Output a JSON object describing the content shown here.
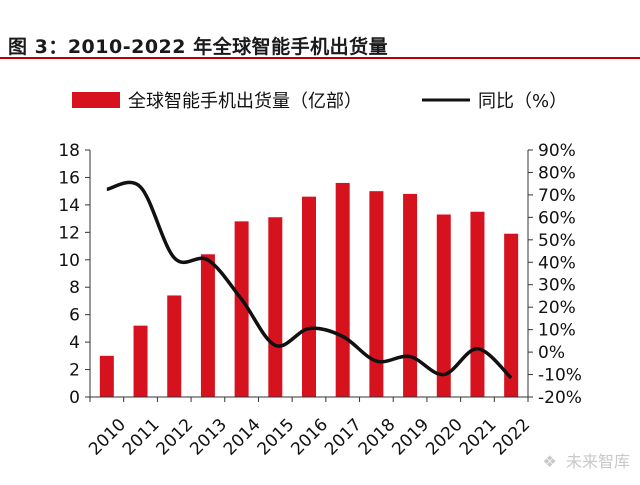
{
  "title": "图 3：2010-2022 年全球智能手机出货量",
  "watermark": "未来智库",
  "colors": {
    "bar": "#d7121f",
    "line": "#111111",
    "rule": "#c00000",
    "axis": "#333333"
  },
  "chart_data": {
    "type": "bar",
    "categories": [
      "2010",
      "2011",
      "2012",
      "2013",
      "2014",
      "2015",
      "2016",
      "2017",
      "2018",
      "2019",
      "2020",
      "2021",
      "2022"
    ],
    "series": [
      {
        "name": "全球智能手机出货量（亿部）",
        "type": "bar",
        "axis": "left",
        "values": [
          3.0,
          5.2,
          7.4,
          10.4,
          12.8,
          13.1,
          14.6,
          15.6,
          15.0,
          14.8,
          13.3,
          13.5,
          11.9
        ]
      },
      {
        "name": "同比（%）",
        "type": "line",
        "axis": "right",
        "values": [
          72.5,
          73.5,
          42.0,
          41.0,
          23.5,
          3.0,
          10.5,
          7.0,
          -4.0,
          -2.0,
          -10.0,
          1.5,
          -11.5
        ]
      }
    ],
    "y_left": {
      "lim": [
        0,
        18
      ],
      "ticks": [
        "0",
        "2",
        "4",
        "6",
        "8",
        "10",
        "12",
        "14",
        "16",
        "18"
      ]
    },
    "y_right": {
      "lim": [
        -20,
        90
      ],
      "ticks": [
        "-20%",
        "-10%",
        "0%",
        "10%",
        "20%",
        "30%",
        "40%",
        "50%",
        "60%",
        "70%",
        "80%",
        "90%"
      ]
    },
    "legend_placement": "top",
    "grid": false
  }
}
